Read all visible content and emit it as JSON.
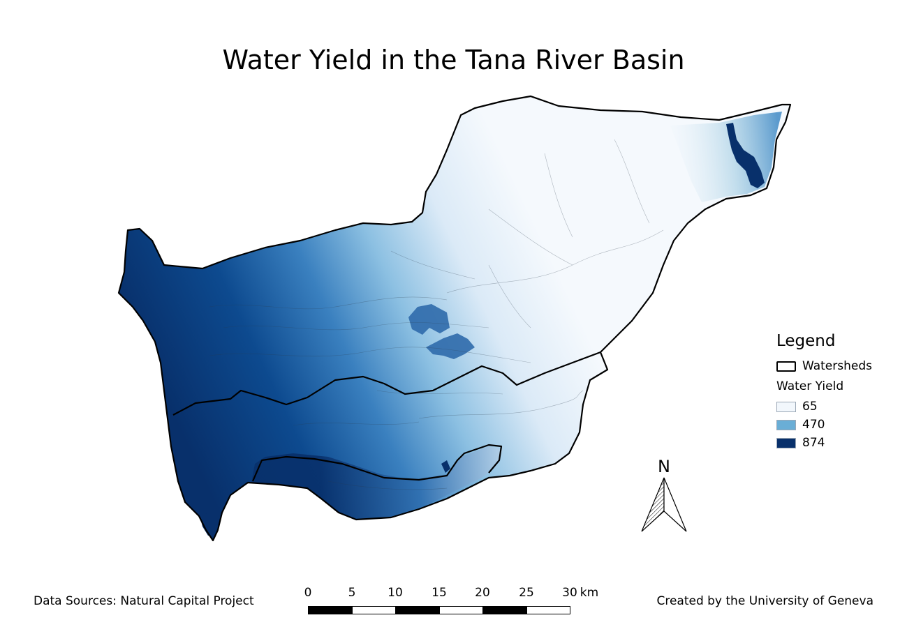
{
  "title": "Water Yield in the Tana River Basin",
  "legend": {
    "title": "Legend",
    "watersheds_label": "Watersheds",
    "water_yield_label": "Water Yield",
    "classes": [
      {
        "label": "65",
        "color": "#f2f7fc"
      },
      {
        "label": "470",
        "color": "#6aaed6"
      },
      {
        "label": "874",
        "color": "#08306b"
      }
    ]
  },
  "north_arrow": {
    "label": "N",
    "icon": "north-arrow-icon"
  },
  "scalebar": {
    "ticks": [
      "0",
      "5",
      "10",
      "15",
      "20",
      "25",
      "30"
    ],
    "unit": "km"
  },
  "footer": {
    "sources": "Data Sources: Natural Capital Project",
    "credit": "Created by the University of Geneva"
  },
  "colors": {
    "low": "#f2f7fc",
    "mid": "#6aaed6",
    "high": "#08306b",
    "boundary": "#000000"
  }
}
